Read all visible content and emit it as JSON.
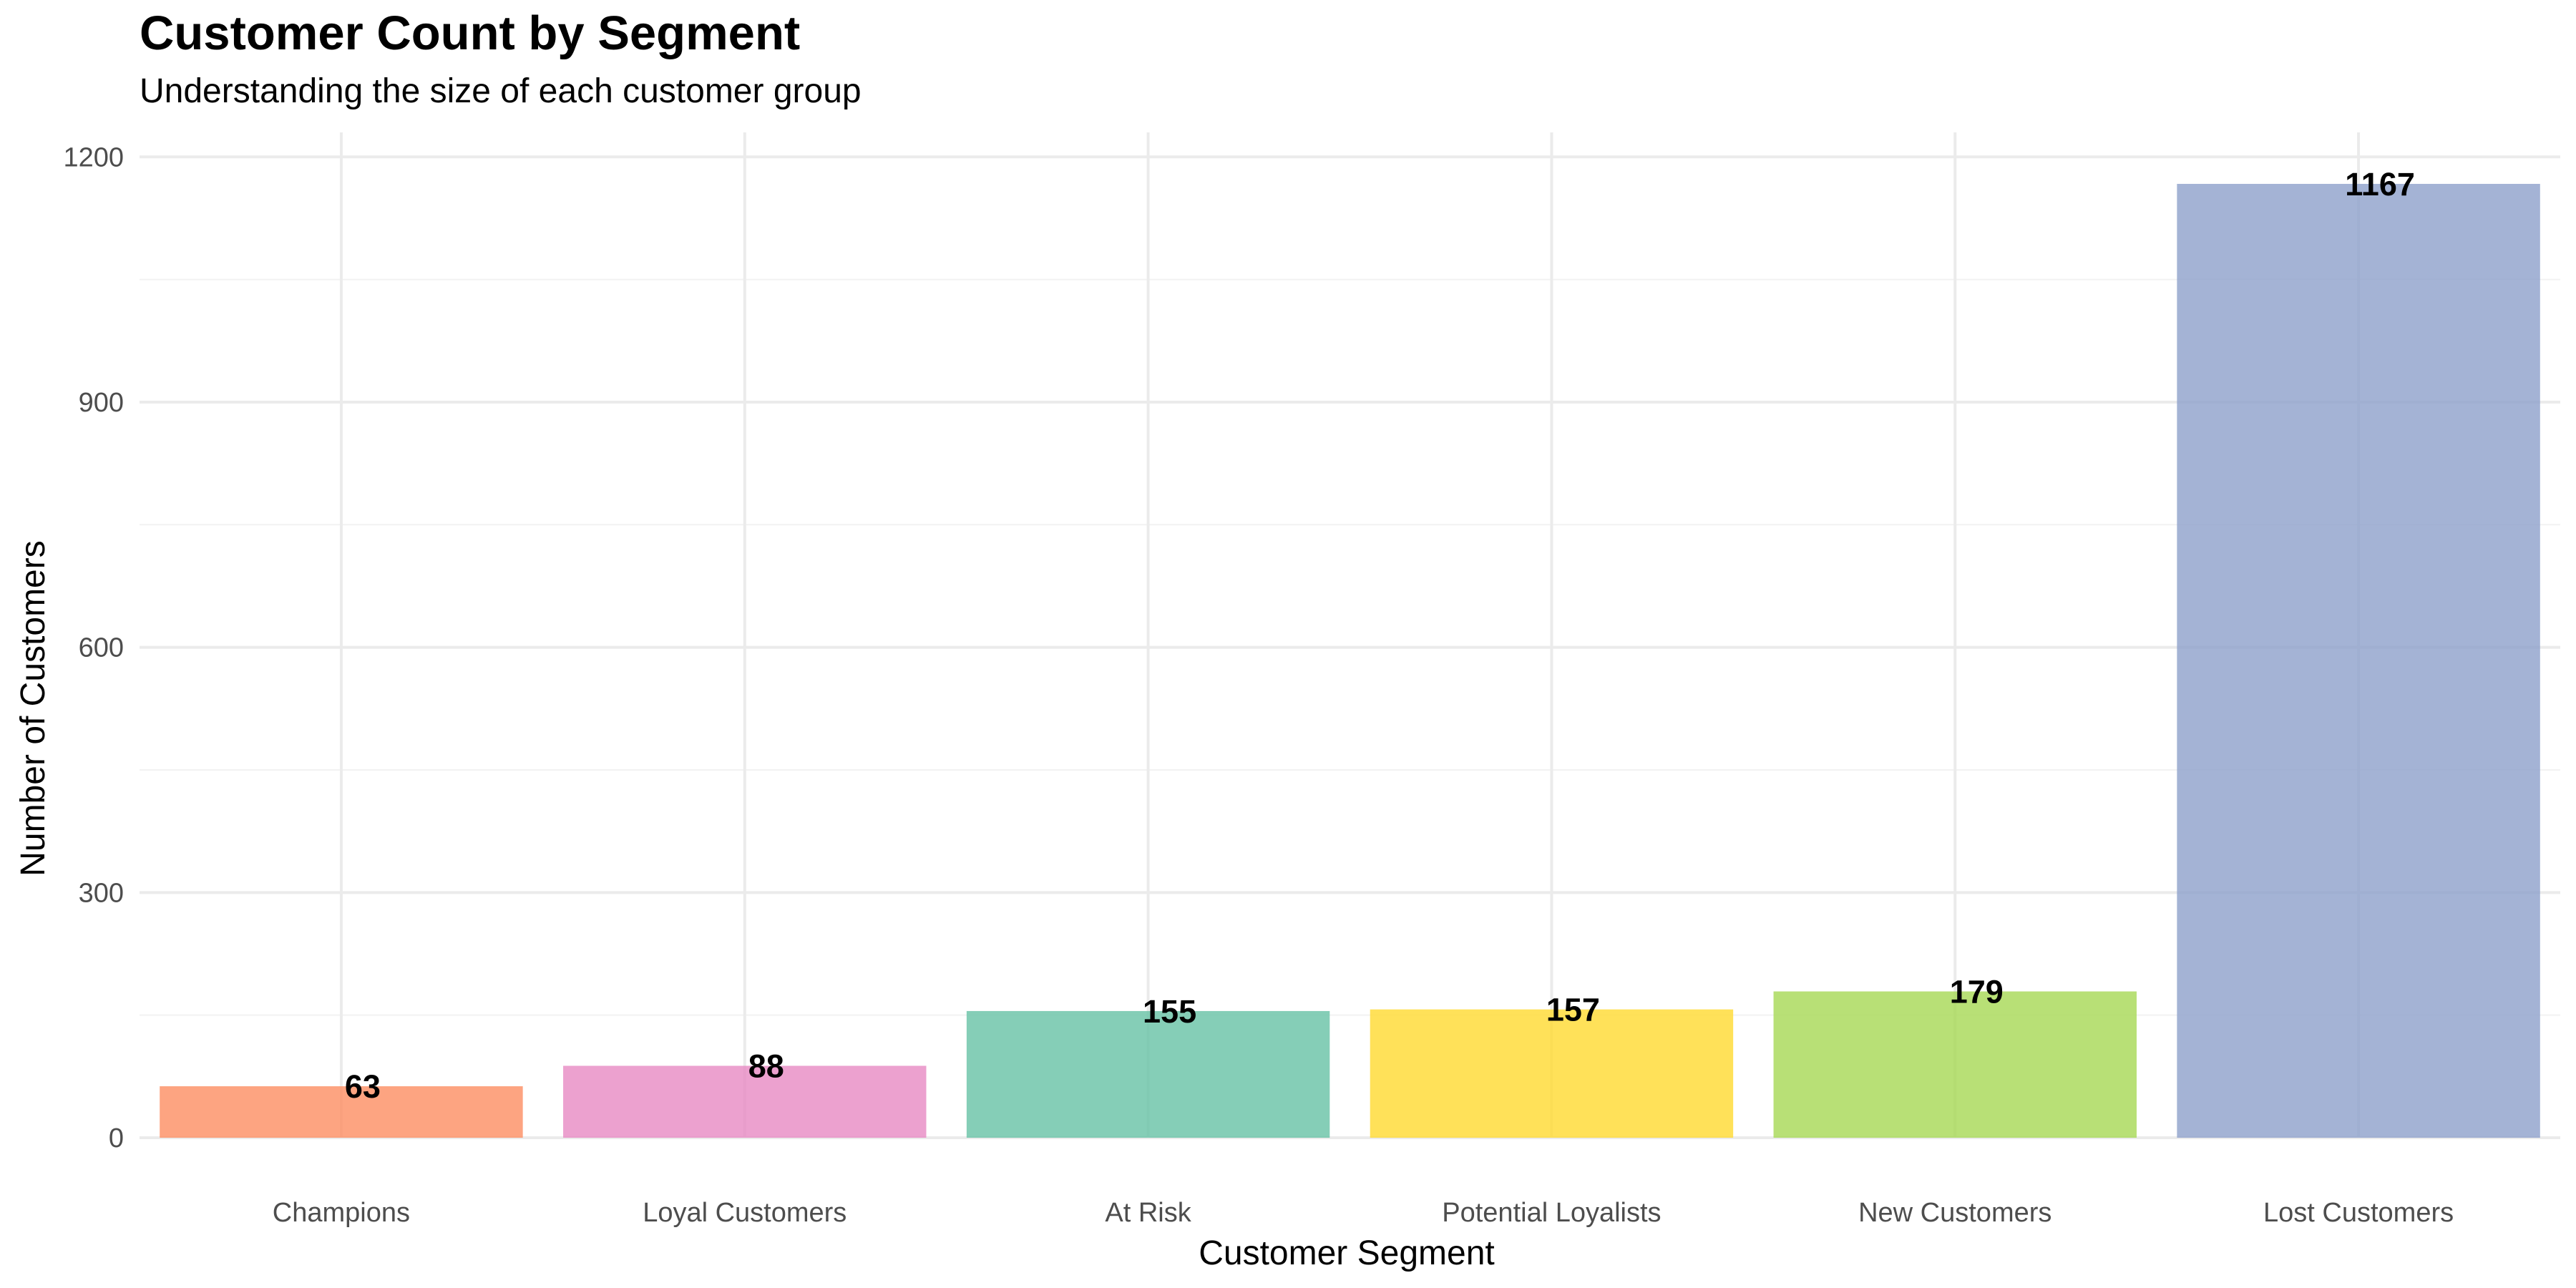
{
  "chart_data": {
    "type": "bar",
    "title": "Customer Count by Segment",
    "subtitle": "Understanding the size of each customer group",
    "xlabel": "Customer Segment",
    "ylabel": "Number of Customers",
    "categories": [
      "Champions",
      "Loyal Customers",
      "At Risk",
      "Potential Loyalists",
      "New Customers",
      "Lost Customers"
    ],
    "values": [
      63,
      88,
      155,
      157,
      179,
      1167
    ],
    "data_labels": [
      "63",
      "88",
      "155",
      "157",
      "179",
      "1167"
    ],
    "colors": [
      "#FC8D62",
      "#E78AC3",
      "#66C2A5",
      "#FFD92F",
      "#A6D854",
      "#8DA0CB"
    ],
    "bar_opacity": 0.8,
    "ylim": [
      0,
      1230
    ],
    "yticks": [
      0,
      300,
      600,
      900,
      1200
    ],
    "ytick_labels": [
      "0",
      "300",
      "600",
      "900",
      "1200"
    ],
    "grid": true,
    "legend": "none"
  }
}
